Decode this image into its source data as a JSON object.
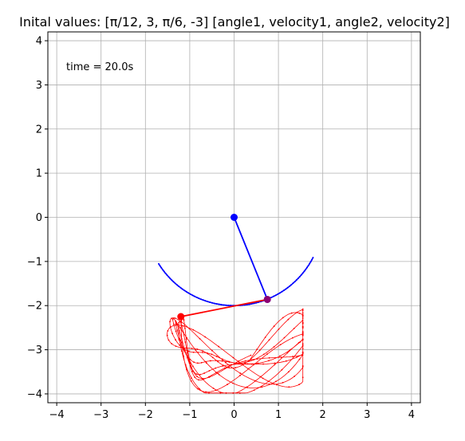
{
  "chart_data": {
    "type": "line",
    "title": "Inital values:  [π/12, 3, π/6, -3]  [angle1, velocity1, angle2, velocity2]",
    "annotation": "time = 20.0s",
    "xlim": [
      -4.2,
      4.2
    ],
    "ylim": [
      -4.2,
      4.2
    ],
    "xticks": [
      -4,
      -3,
      -2,
      -1,
      0,
      1,
      2,
      3,
      4
    ],
    "yticks": [
      -4,
      -3,
      -2,
      -1,
      0,
      1,
      2,
      3,
      4
    ],
    "xtick_labels": [
      "−4",
      "−3",
      "−2",
      "−1",
      "0",
      "1",
      "2",
      "3",
      "4"
    ],
    "ytick_labels": [
      "−4",
      "−3",
      "−2",
      "−1",
      "0",
      "1",
      "2",
      "3",
      "4"
    ],
    "grid": true,
    "colors": {
      "bob1": "#0000ff",
      "bob2": "#ff0000",
      "grid": "#b0b0b0",
      "axes": "#000000"
    },
    "pivot": [
      0,
      0
    ],
    "bob1": [
      0.75,
      -1.86
    ],
    "bob2": [
      -1.2,
      -2.25
    ],
    "trace1": {
      "arc_radius": 2.0,
      "x_range": [
        -1.7,
        1.78
      ],
      "points_approx": [
        [
          -1.7,
          -1.06
        ],
        [
          -1.2,
          -1.6
        ],
        [
          -0.6,
          -1.91
        ],
        [
          0,
          -2.0
        ],
        [
          0.6,
          -1.91
        ],
        [
          1.2,
          -1.6
        ],
        [
          1.78,
          -0.92
        ]
      ]
    },
    "trace2": {
      "points_approx": [
        [
          -1.2,
          -2.25
        ],
        [
          -1.8,
          -2.9
        ],
        [
          -2.0,
          -3.35
        ],
        [
          -1.6,
          -3.4
        ],
        [
          -0.6,
          -2.9
        ],
        [
          0.3,
          -3.2
        ],
        [
          0.6,
          -3.8
        ],
        [
          1.0,
          -3.4
        ],
        [
          1.2,
          -1.85
        ],
        [
          1.4,
          -2.6
        ],
        [
          1.5,
          -3.6
        ],
        [
          0.8,
          -3.9
        ],
        [
          0.3,
          -3.95
        ],
        [
          -0.4,
          -3.3
        ],
        [
          -1.4,
          -2.4
        ]
      ]
    }
  }
}
